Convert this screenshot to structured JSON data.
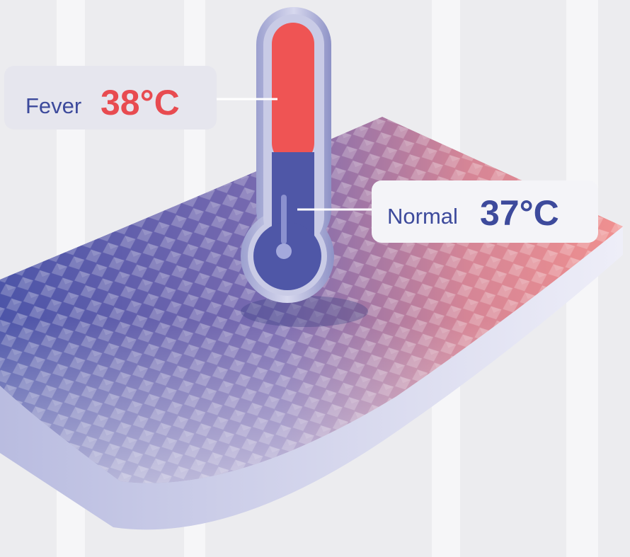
{
  "labels": {
    "fever": {
      "name": "Fever",
      "temp": "38°C"
    },
    "normal": {
      "name": "Normal",
      "temp": "37°C"
    }
  }
}
